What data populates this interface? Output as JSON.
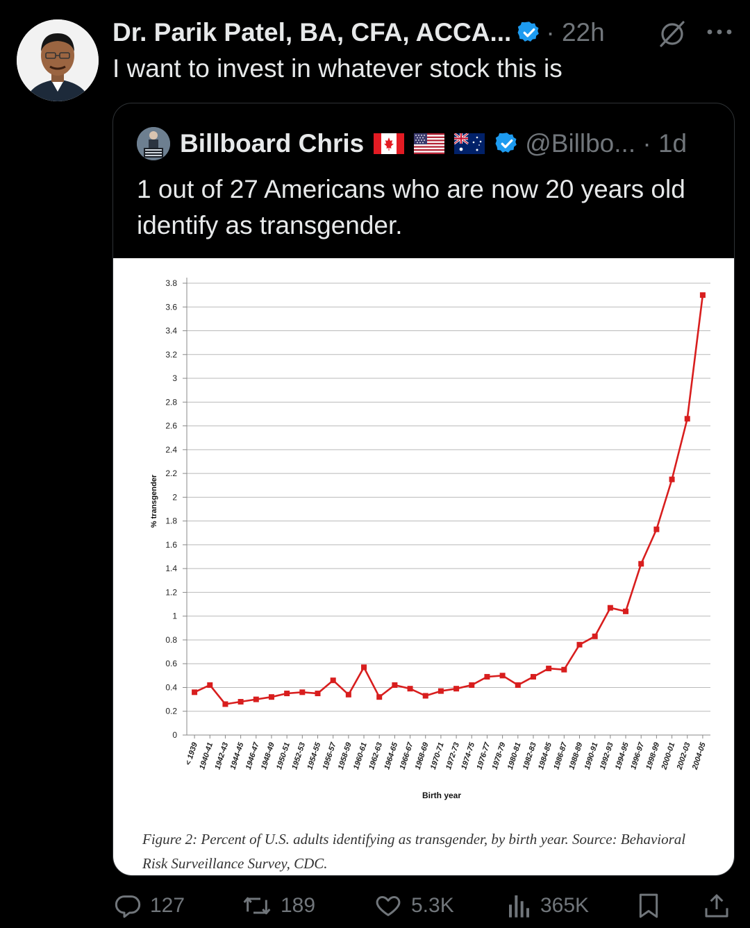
{
  "tweet": {
    "author_name": "Dr. Parik Patel, BA, CFA, ACCA...",
    "time": "· 22h",
    "text": "I want to invest in whatever stock this is"
  },
  "quote": {
    "author_name": "Billboard Chris",
    "handle_time": "@Billbo... · 1d",
    "text": "1 out of 27 Americans who are now 20 years old identify as transgender.",
    "flags": [
      "canada-flag",
      "usa-flag",
      "australia-flag"
    ]
  },
  "chart_data": {
    "type": "line",
    "title": "",
    "xlabel": "Birth year",
    "ylabel": "% transgender",
    "ylim": [
      0,
      3.8
    ],
    "yticks": [
      "0",
      "0.2",
      "0.4",
      "0.6",
      "0.8",
      "1",
      "1.2",
      "1.4",
      "1.6",
      "1.8",
      "2",
      "2.2",
      "2.4",
      "2.6",
      "2.8",
      "3",
      "3.2",
      "3.4",
      "3.6",
      "3.8"
    ],
    "grid": true,
    "line_color": "#d81e1e",
    "categories": [
      "< 1939",
      "1940-41",
      "1942-43",
      "1944-45",
      "1946-47",
      "1948-49",
      "1950-51",
      "1952-53",
      "1954-55",
      "1956-57",
      "1958-59",
      "1960-61",
      "1962-63",
      "1964-65",
      "1966-67",
      "1968-69",
      "1970-71",
      "1972-73",
      "1974-75",
      "1976-77",
      "1978-79",
      "1980-81",
      "1982-83",
      "1984-85",
      "1986-87",
      "1988-89",
      "1990-91",
      "1992-93",
      "1994-95",
      "1996-97",
      "1998-99",
      "2000-01",
      "2002-03",
      "2004-05"
    ],
    "values": [
      0.36,
      0.42,
      0.26,
      0.28,
      0.3,
      0.32,
      0.35,
      0.36,
      0.35,
      0.46,
      0.34,
      0.57,
      0.32,
      0.42,
      0.39,
      0.33,
      0.37,
      0.39,
      0.42,
      0.49,
      0.5,
      0.42,
      0.49,
      0.56,
      0.55,
      0.76,
      0.83,
      1.07,
      1.04,
      1.44,
      1.73,
      2.15,
      2.66,
      3.7
    ],
    "caption": "Figure 2: Percent of U.S. adults identifying as transgender, by birth year. Source: Behavioral Risk Surveillance Survey, CDC."
  },
  "actions": {
    "replies": "127",
    "reposts": "189",
    "likes": "5.3K",
    "views": "365K"
  }
}
